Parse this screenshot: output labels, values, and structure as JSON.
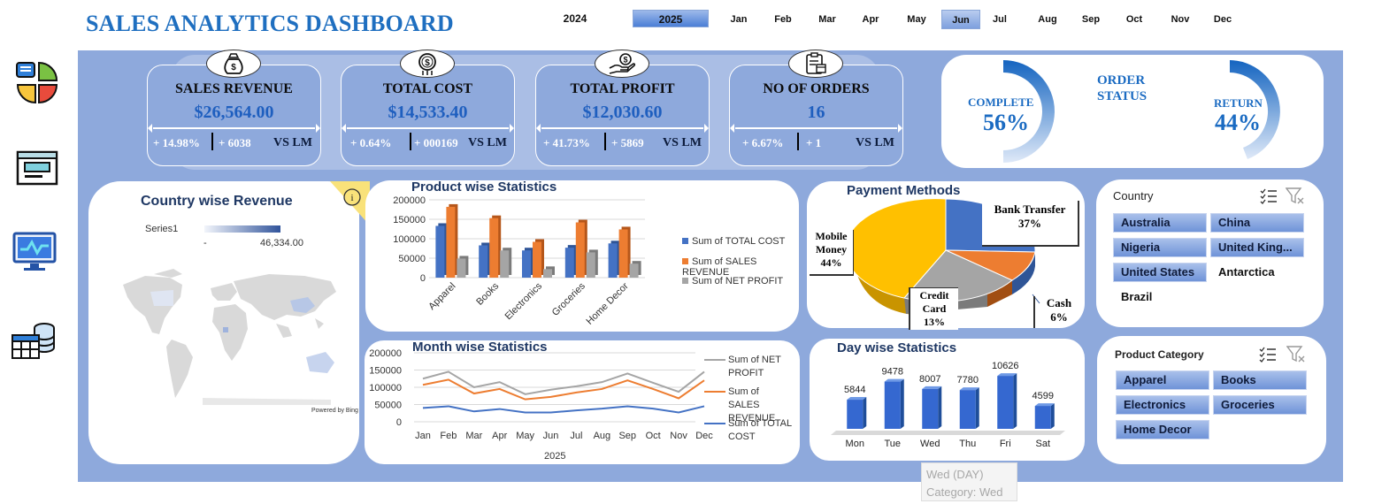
{
  "header": {
    "title": "SALES ANALYTICS DASHBOARD",
    "years": [
      "2024",
      "2025"
    ],
    "selected_year": "2025",
    "months": [
      "Jan",
      "Feb",
      "Mar",
      "Apr",
      "May",
      "Jun",
      "Jul",
      "Aug",
      "Sep",
      "Oct",
      "Nov",
      "Dec"
    ],
    "selected_month": "Jun"
  },
  "sidebar": {
    "icons": [
      "dashboard-tiles-icon",
      "report-window-icon",
      "monitor-chart-icon",
      "database-table-icon"
    ]
  },
  "kpis": [
    {
      "title": "SALES REVENUE",
      "value": "$26,564.00",
      "pct": "+ 14.98%",
      "abs": "+ 6038",
      "vs": "VS LM",
      "icon": "money-bag-icon"
    },
    {
      "title": "TOTAL COST",
      "value": "$14,533.40",
      "pct": "+ 0.64%",
      "abs": "+ 000169",
      "vs": "VS LM",
      "icon": "dollar-coin-icon"
    },
    {
      "title": "TOTAL PROFIT",
      "value": "$12,030.60",
      "pct": "+ 41.73%",
      "abs": "+ 5869",
      "vs": "VS LM",
      "icon": "hand-money-icon"
    },
    {
      "title": "NO OF ORDERS",
      "value": "16",
      "pct": "+ 6.67%",
      "abs": "+ 1",
      "vs": "VS LM",
      "icon": "clipboard-order-icon"
    }
  ],
  "order_status": {
    "title_line1": "ORDER",
    "title_line2": "STATUS",
    "complete_label": "COMPLETE",
    "complete_value": "56%",
    "complete_pct": 56,
    "return_label": "RETURN",
    "return_value": "44%",
    "return_pct": 44
  },
  "country_revenue": {
    "title": "Country wise Revenue",
    "legend_series": "Series1",
    "legend_min": "-",
    "legend_max": "46,334.00",
    "powered_by": "Powered by Bing",
    "info_icon": "i"
  },
  "product_stats": {
    "title": "Product  wise Statistics",
    "legend": [
      "Sum of TOTAL COST",
      "Sum of SALES REVENUE",
      "Sum of NET PROFIT"
    ],
    "colors": [
      "#4472C4",
      "#ED7D31",
      "#A5A5A5"
    ]
  },
  "month_stats": {
    "title": "Month  wise Statistics",
    "legend": [
      "Sum of NET PROFIT",
      "Sum of SALES REVENUE",
      "Sum of TOTAL COST"
    ],
    "xlabel": "2025"
  },
  "payment": {
    "title": "Payment Methods",
    "labels": [
      {
        "name": "Bank Transfer",
        "pct": "37%"
      },
      {
        "name": "Cash",
        "pct": "6%"
      },
      {
        "name": "Credit Card",
        "pct": "13%"
      },
      {
        "name": "Mobile Money",
        "pct": "44%"
      }
    ]
  },
  "day_stats": {
    "title": "Day wise Statistics",
    "tooltip_line1": "Wed (DAY)",
    "tooltip_line2": "Category: Wed"
  },
  "country_slicer": {
    "title": "Country",
    "items": [
      "Australia",
      "China",
      "Nigeria",
      "United King...",
      "United States",
      "Antarctica",
      "Brazil"
    ]
  },
  "category_slicer": {
    "title": "Product Category",
    "items": [
      "Apparel",
      "Books",
      "Electronics",
      "Groceries",
      "Home Decor"
    ]
  },
  "chart_data": [
    {
      "type": "bar",
      "categories": [
        "Apparel",
        "Books",
        "Electronics",
        "Groceries",
        "Home Decor"
      ],
      "series": [
        {
          "name": "Sum of TOTAL COST",
          "values": [
            133000,
            83000,
            70000,
            77000,
            88000
          ]
        },
        {
          "name": "Sum of SALES REVENUE",
          "values": [
            182000,
            153000,
            92000,
            142000,
            124000
          ]
        },
        {
          "name": "Sum of NET PROFIT",
          "values": [
            49000,
            70000,
            22000,
            65000,
            36000
          ]
        }
      ],
      "ylim": [
        0,
        200000
      ],
      "yticks": [
        "0",
        "50000",
        "100000",
        "150000",
        "200000"
      ]
    },
    {
      "type": "line",
      "x": [
        "Jan",
        "Feb",
        "Mar",
        "Apr",
        "May",
        "Jun",
        "Jul",
        "Aug",
        "Sep",
        "Oct",
        "Nov",
        "Dec"
      ],
      "xlabel": "2025",
      "series": [
        {
          "name": "Sum of NET PROFIT",
          "values": [
            125000,
            145000,
            100000,
            115000,
            80000,
            93000,
            103000,
            115000,
            140000,
            113000,
            87000,
            145000
          ]
        },
        {
          "name": "Sum of SALES REVENUE",
          "values": [
            107000,
            122000,
            82000,
            95000,
            65000,
            72000,
            85000,
            95000,
            120000,
            95000,
            68000,
            120000
          ]
        },
        {
          "name": "Sum of TOTAL COST",
          "values": [
            40000,
            45000,
            30000,
            37000,
            27000,
            27000,
            33000,
            38000,
            45000,
            38000,
            27000,
            45000
          ]
        }
      ],
      "ylim": [
        0,
        200000
      ],
      "yticks": [
        "0",
        "50000",
        "100000",
        "150000",
        "200000"
      ]
    },
    {
      "type": "pie",
      "categories": [
        "Bank Transfer",
        "Cash",
        "Credit Card",
        "Mobile Money"
      ],
      "values": [
        37,
        6,
        13,
        44
      ],
      "colors": [
        "#4472C4",
        "#ED7D31",
        "#A5A5A5",
        "#FFC000"
      ]
    },
    {
      "type": "bar",
      "categories": [
        "Mon",
        "Tue",
        "Wed",
        "Thu",
        "Fri",
        "Sat"
      ],
      "values": [
        5844,
        9478,
        8007,
        7780,
        10626,
        4599
      ],
      "labels": [
        "5844",
        "9478",
        "8007",
        "7780",
        "10626",
        "4599"
      ]
    }
  ]
}
